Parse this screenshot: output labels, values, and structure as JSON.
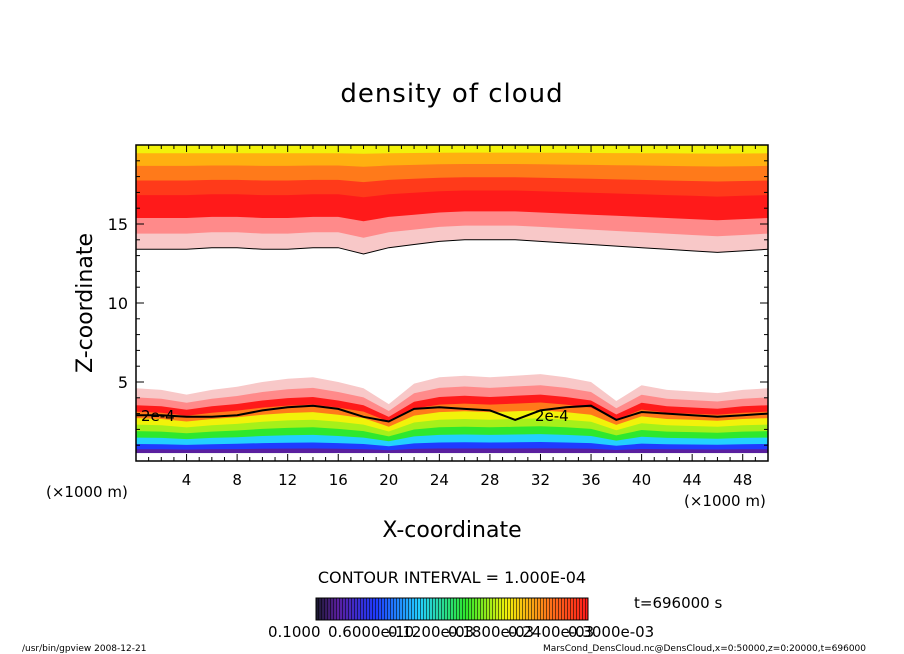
{
  "chart_data": {
    "type": "heatmap",
    "title": "density of cloud",
    "xlabel": "X-coordinate",
    "ylabel": "Z-coordinate",
    "x_unit": "(×1000 m)",
    "y_unit": "(×1000 m)",
    "xlim": [
      0,
      50
    ],
    "ylim": [
      0,
      20
    ],
    "x_ticks": [
      "4",
      "8",
      "12",
      "16",
      "20",
      "24",
      "28",
      "32",
      "36",
      "40",
      "44",
      "48"
    ],
    "y_ticks": [
      "5",
      "10",
      "15"
    ],
    "contour_labels": [
      "2e-4",
      "2e-4"
    ],
    "contour_interval_text": "CONTOUR INTERVAL = 1.000E-04",
    "time_text": "t=696000 s",
    "colorbar_labels": [
      "0.1000",
      "0.6000e-10",
      "0.1200e-03",
      "0.1800e-03",
      "0.2400e-03",
      "0.3000e-03"
    ],
    "footer_left": "/usr/bin/gpview   2008-12-21",
    "footer_right": "MarsCond_DensCloud.nc@DensCloud,x=0:50000,z=0:20000,t=696000",
    "colors": {
      "purple": "#5a1f9f",
      "blue": "#1f3bff",
      "cyan": "#23d0ff",
      "green": "#2ee82e",
      "yellow": "#f2f20a",
      "orange": "#ff7a1a",
      "red": "#ff1a1a",
      "pink": "#f8c8c8",
      "white": "#ffffff"
    },
    "lower_band": {
      "bottom_z": 0.5,
      "top_z": [
        4.6,
        4.5,
        4.2,
        4.5,
        4.7,
        5.0,
        5.2,
        5.3,
        5.0,
        4.6,
        3.6,
        4.9,
        5.3,
        5.4,
        5.3,
        5.4,
        5.5,
        5.3,
        5.0,
        3.8,
        4.8,
        4.5,
        4.4,
        4.3,
        4.5,
        4.6
      ],
      "contour_2e4_z": [
        2.9,
        2.9,
        2.8,
        2.8,
        2.9,
        3.2,
        3.4,
        3.5,
        3.3,
        2.8,
        2.5,
        3.3,
        3.4,
        3.3,
        3.2,
        2.6,
        3.2,
        3.4,
        3.5,
        2.6,
        3.1,
        3.0,
        2.9,
        2.8,
        2.9,
        3.0
      ]
    },
    "upper_band": {
      "bottom_z": [
        13.4,
        13.4,
        13.4,
        13.5,
        13.5,
        13.4,
        13.4,
        13.5,
        13.5,
        13.1,
        13.5,
        13.7,
        13.9,
        14.0,
        14.0,
        14.0,
        13.9,
        13.8,
        13.7,
        13.6,
        13.5,
        13.4,
        13.3,
        13.2,
        13.3,
        13.4
      ],
      "peak_z": 15.5,
      "top_z": 20
    }
  }
}
